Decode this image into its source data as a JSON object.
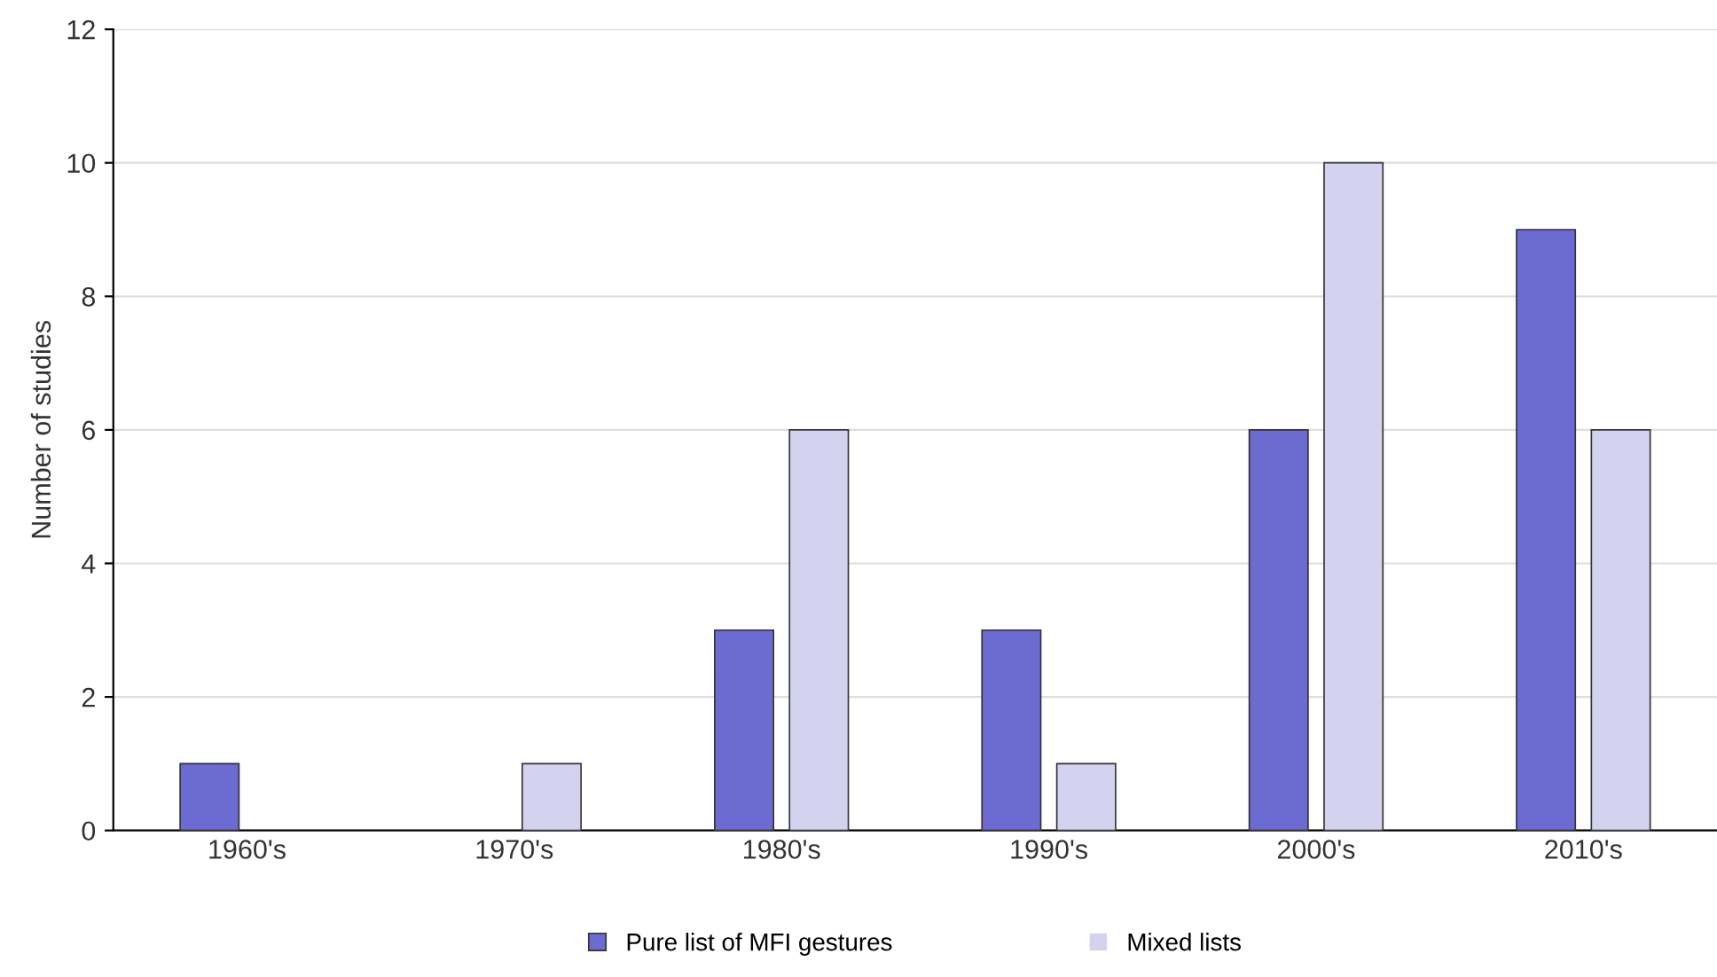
{
  "chart_data": {
    "type": "bar",
    "ylabel": "Number of studies",
    "categories": [
      "1960's",
      "1970's",
      "1980's",
      "1990's",
      "2000's",
      "2010's"
    ],
    "series": [
      {
        "name": "Pure list of MFI gestures",
        "color": "#6b6bd2",
        "values": [
          1,
          0,
          3,
          3,
          6,
          9
        ]
      },
      {
        "name": "Mixed lists",
        "color": "#d3d3f0",
        "values": [
          0,
          1,
          6,
          1,
          10,
          6
        ]
      }
    ],
    "ylim": [
      0,
      12
    ],
    "yticks": [
      0,
      2,
      4,
      6,
      8,
      10,
      12
    ],
    "grid": "y",
    "legend": "bottom"
  }
}
